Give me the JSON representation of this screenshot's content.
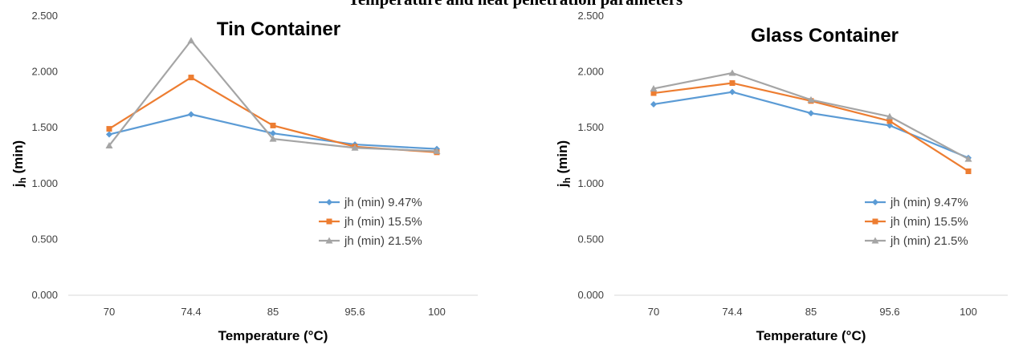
{
  "header": {
    "partial_title": "Temperature and heat penetration parameters"
  },
  "chart_data": [
    {
      "type": "line",
      "title": "Tin Container",
      "xlabel": "Temperature (°C)",
      "ylabel_main": "j",
      "ylabel_sub": "h",
      "ylabel_rest": " (min)",
      "categories": [
        "70",
        "74.4",
        "85",
        "95.6",
        "100"
      ],
      "yticks": [
        "0.000",
        "0.500",
        "1.000",
        "1.500",
        "2.000",
        "2.500"
      ],
      "ylim": [
        0,
        2.5
      ],
      "grid": false,
      "legend_position": "right",
      "series": [
        {
          "name": "jh (min) 9.47%",
          "color": "#5B9BD5",
          "marker": "diamond",
          "values": [
            1.44,
            1.62,
            1.45,
            1.35,
            1.31
          ]
        },
        {
          "name": "jh (min) 15.5%",
          "color": "#ED7D31",
          "marker": "square",
          "values": [
            1.49,
            1.95,
            1.52,
            1.33,
            1.28
          ]
        },
        {
          "name": "jh (min) 21.5%",
          "color": "#A5A5A5",
          "marker": "triangle",
          "values": [
            1.34,
            2.28,
            1.4,
            1.32,
            1.29
          ]
        }
      ]
    },
    {
      "type": "line",
      "title": "Glass Container",
      "xlabel": "Temperature (°C)",
      "ylabel_main": "j",
      "ylabel_sub": "h",
      "ylabel_rest": " (min)",
      "categories": [
        "70",
        "74.4",
        "85",
        "95.6",
        "100"
      ],
      "yticks": [
        "0.000",
        "0.500",
        "1.000",
        "1.500",
        "2.000",
        "2.500"
      ],
      "ylim": [
        0,
        2.5
      ],
      "grid": false,
      "legend_position": "right",
      "series": [
        {
          "name": "jh (min) 9.47%",
          "color": "#5B9BD5",
          "marker": "diamond",
          "values": [
            1.71,
            1.82,
            1.63,
            1.52,
            1.23
          ]
        },
        {
          "name": "jh (min) 15.5%",
          "color": "#ED7D31",
          "marker": "square",
          "values": [
            1.81,
            1.9,
            1.74,
            1.56,
            1.11
          ]
        },
        {
          "name": "jh (min) 21.5%",
          "color": "#A5A5A5",
          "marker": "triangle",
          "values": [
            1.85,
            1.99,
            1.75,
            1.6,
            1.22
          ]
        }
      ]
    }
  ]
}
